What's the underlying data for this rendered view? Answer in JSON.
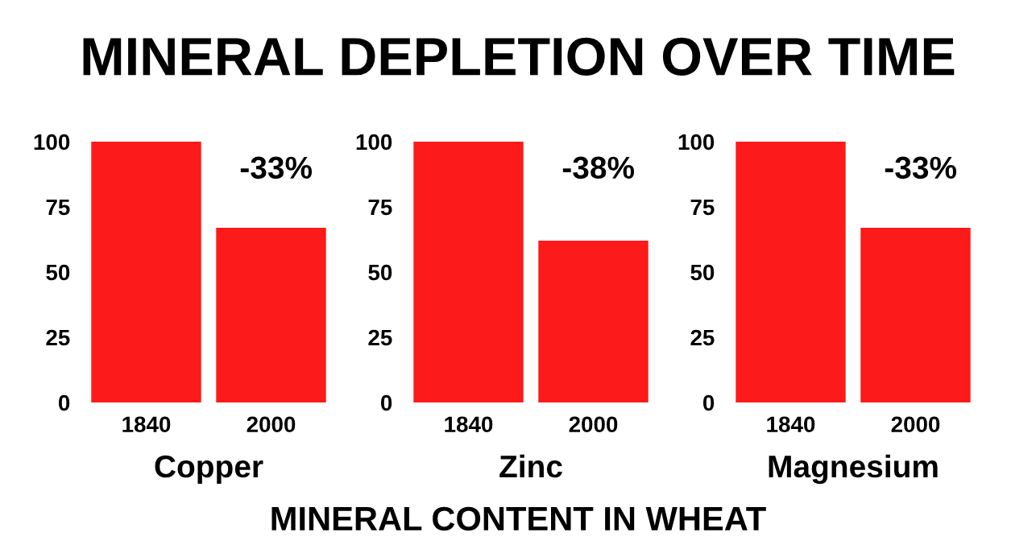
{
  "chart_data": [
    {
      "type": "bar",
      "xlabel": "Copper",
      "categories": [
        "1840",
        "2000"
      ],
      "values": [
        100,
        67
      ],
      "color": "#fd1a1a",
      "ylim": [
        0,
        100
      ],
      "yticks": [
        0,
        25,
        50,
        75,
        100
      ],
      "grid": false,
      "annotations": [
        "-33%"
      ]
    },
    {
      "type": "bar",
      "title": "MINERAL DEPLETION OVER TIME",
      "xlabel": "Zinc",
      "categories": [
        "1840",
        "2000"
      ],
      "values": [
        100,
        62
      ],
      "color": "#fd1a1a",
      "ylim": [
        0,
        100
      ],
      "yticks": [
        0,
        25,
        50,
        75,
        100
      ],
      "grid": false,
      "annotations": [
        "-38%",
        "MINERAL CONTENT IN WHEAT"
      ]
    },
    {
      "type": "bar",
      "xlabel": "Magnesium",
      "categories": [
        "1840",
        "2000"
      ],
      "values": [
        100,
        67
      ],
      "color": "#fd1a1a",
      "ylim": [
        0,
        100
      ],
      "yticks": [
        0,
        25,
        50,
        75,
        100
      ],
      "grid": false,
      "annotations": [
        "-33%"
      ]
    }
  ]
}
